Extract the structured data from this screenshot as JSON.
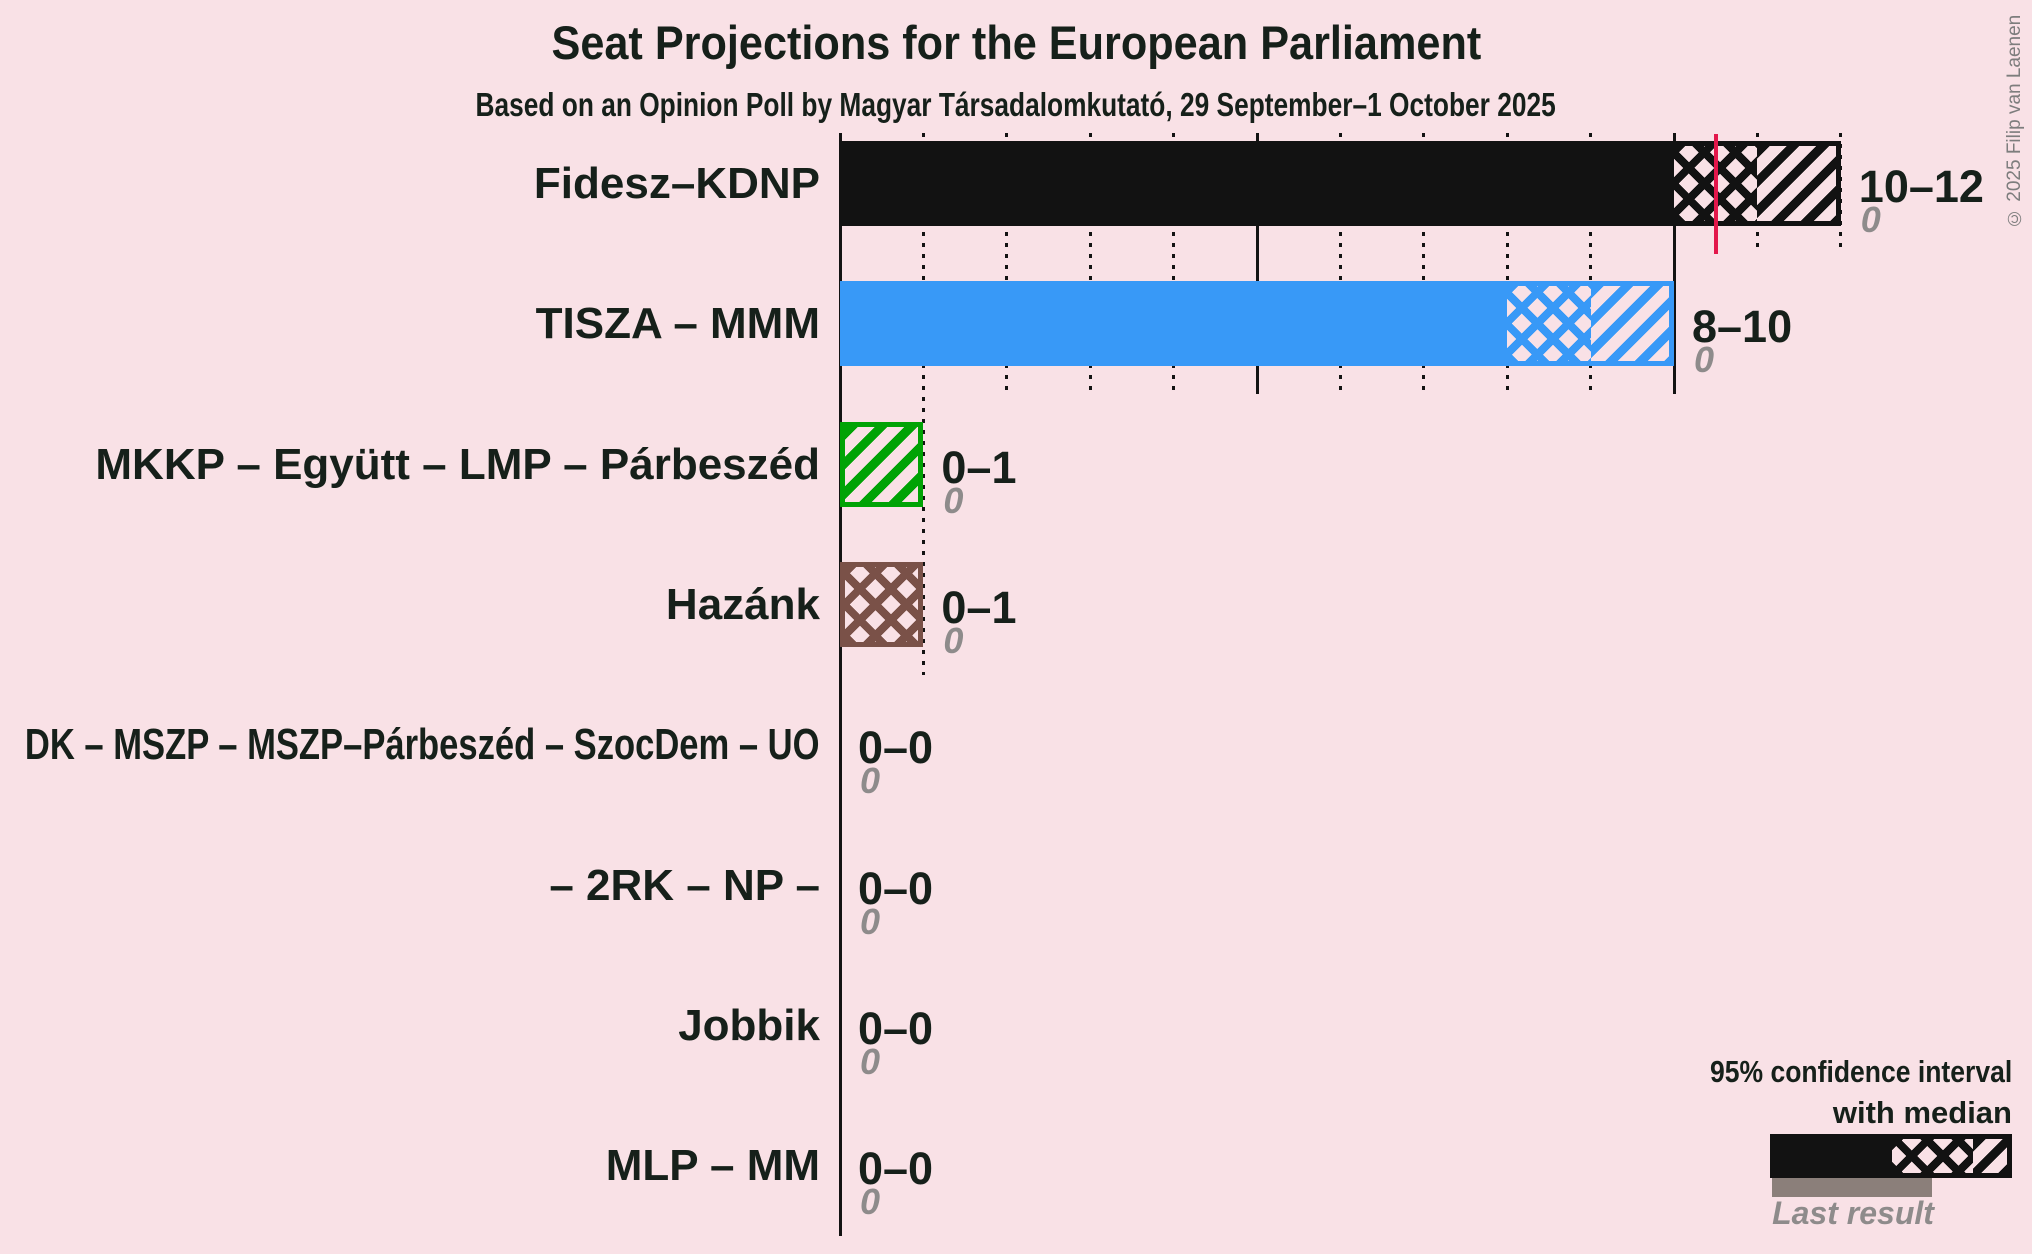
{
  "title": "Seat Projections for the European Parliament",
  "subtitle": "Based on an Opinion Poll by Magyar Társadalomkutató, 29 September–1 October 2025",
  "copyright": "© 2025 Filip van Laenen",
  "legend": {
    "ci_line1": "95% confidence interval",
    "ci_line2": "with median",
    "last_result": "Last result"
  },
  "colors": {
    "background": "#f9e1e6",
    "bar_black": "#121212",
    "bar_blue": "#3899f7",
    "bar_green": "#00a305",
    "bar_brown": "#7a5148",
    "median_red": "#e3174b",
    "line_dark": "#131313",
    "text_dark": "#16201a",
    "text_gray": "#8e8b8b",
    "last_result_gray": "#8b7f7a"
  },
  "chart_data": {
    "type": "bar",
    "title": "Seat Projections for the European Parliament",
    "subtitle": "Based on an Opinion Poll by Magyar Társadalomkutató, 29 September–1 October 2025",
    "x_axis": {
      "min": 0,
      "max": 12,
      "major_gridline_interval": 5,
      "gridlines": "dotted, solid every 5 seats"
    },
    "legend_note": "95% confidence interval with median; gray bar = last result",
    "parties": [
      {
        "name": "Fidesz–KDNP",
        "ci_label": "10–12",
        "ci_low": 10,
        "ci_high": 12,
        "median": 10.5,
        "last_result": 0,
        "last_result_label": "0",
        "color_key": "bar_black",
        "segments": {
          "solid_end": 10,
          "cross_end": 11,
          "diag_end": 12
        },
        "median_line": true
      },
      {
        "name": "TISZA – MMM",
        "ci_label": "8–10",
        "ci_low": 8,
        "ci_high": 10,
        "median": null,
        "last_result": 0,
        "last_result_label": "0",
        "color_key": "bar_blue",
        "segments": {
          "solid_end": 8,
          "cross_end": 9,
          "diag_end": 10
        },
        "median_line": false
      },
      {
        "name": "MKKP – Együtt – LMP – Párbeszéd",
        "ci_label": "0–1",
        "ci_low": 0,
        "ci_high": 1,
        "median": null,
        "last_result": 0,
        "last_result_label": "0",
        "color_key": "bar_green",
        "segments": {
          "solid_end": 0,
          "cross_end": 0,
          "diag_end": 1
        },
        "median_line": false
      },
      {
        "name": "Hazánk",
        "ci_label": "0–1",
        "ci_low": 0,
        "ci_high": 1,
        "median": null,
        "last_result": 0,
        "last_result_label": "0",
        "color_key": "bar_brown",
        "segments": {
          "solid_end": 0,
          "cross_end": 1,
          "diag_end": 1
        },
        "median_line": false
      },
      {
        "name": "DK – MSZP – MSZP–Párbeszéd – SzocDem – UO",
        "ci_label": "0–0",
        "ci_low": 0,
        "ci_high": 0,
        "median": null,
        "last_result": 0,
        "last_result_label": "0",
        "color_key": "bar_black",
        "segments": {
          "solid_end": 0,
          "cross_end": 0,
          "diag_end": 0
        },
        "median_line": false
      },
      {
        "name": "– 2RK – NP –",
        "ci_label": "0–0",
        "ci_low": 0,
        "ci_high": 0,
        "median": null,
        "last_result": 0,
        "last_result_label": "0",
        "color_key": "bar_black",
        "segments": {
          "solid_end": 0,
          "cross_end": 0,
          "diag_end": 0
        },
        "median_line": false
      },
      {
        "name": "Jobbik",
        "ci_label": "0–0",
        "ci_low": 0,
        "ci_high": 0,
        "median": null,
        "last_result": 0,
        "last_result_label": "0",
        "color_key": "bar_black",
        "segments": {
          "solid_end": 0,
          "cross_end": 0,
          "diag_end": 0
        },
        "median_line": false
      },
      {
        "name": "MLP – MM",
        "ci_label": "0–0",
        "ci_low": 0,
        "ci_high": 0,
        "median": null,
        "last_result": 0,
        "last_result_label": "0",
        "color_key": "bar_black",
        "segments": {
          "solid_end": 0,
          "cross_end": 0,
          "diag_end": 0
        },
        "median_line": false
      }
    ]
  }
}
